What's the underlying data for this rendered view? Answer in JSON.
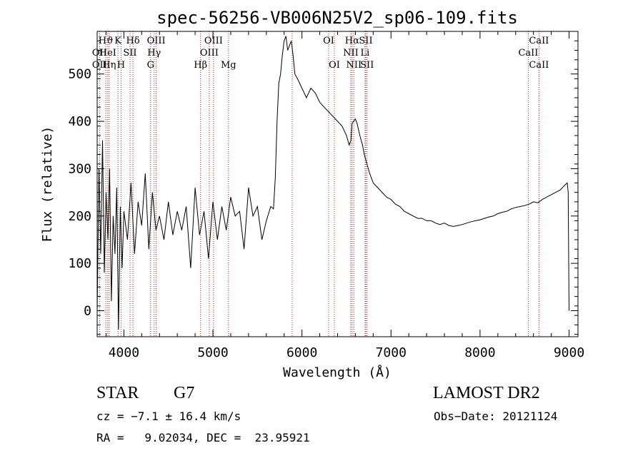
{
  "chart_data": {
    "type": "line",
    "title": "spec-56256-VB006N25V2_sp06-109.fits",
    "xlabel": "Wavelength (Å)",
    "ylabel": "Flux (relative)",
    "xlim": [
      3700,
      9100
    ],
    "ylim": [
      -55,
      590
    ],
    "xticks": [
      4000,
      5000,
      6000,
      7000,
      8000,
      9000
    ],
    "yticks": [
      0,
      100,
      200,
      300,
      400,
      500
    ],
    "grid": false,
    "series": [
      {
        "line_color": "#000000",
        "x": [
          3700,
          3720,
          3740,
          3760,
          3780,
          3800,
          3820,
          3840,
          3860,
          3880,
          3900,
          3920,
          3940,
          3960,
          3980,
          4000,
          4040,
          4080,
          4120,
          4160,
          4200,
          4240,
          4280,
          4320,
          4360,
          4400,
          4450,
          4500,
          4550,
          4600,
          4650,
          4700,
          4750,
          4800,
          4850,
          4900,
          4950,
          5000,
          5050,
          5100,
          5150,
          5200,
          5250,
          5300,
          5350,
          5400,
          5450,
          5500,
          5550,
          5600,
          5650,
          5680,
          5700,
          5720,
          5740,
          5760,
          5780,
          5800,
          5820,
          5840,
          5860,
          5880,
          5900,
          5920,
          5950,
          6000,
          6050,
          6100,
          6150,
          6200,
          6250,
          6300,
          6350,
          6400,
          6450,
          6500,
          6530,
          6550,
          6562,
          6580,
          6600,
          6620,
          6650,
          6680,
          6700,
          6730,
          6760,
          6800,
          6850,
          6900,
          6950,
          7000,
          7050,
          7100,
          7150,
          7200,
          7250,
          7300,
          7350,
          7400,
          7450,
          7500,
          7550,
          7600,
          7650,
          7700,
          7750,
          7800,
          7850,
          7900,
          7950,
          8000,
          8050,
          8100,
          8150,
          8200,
          8250,
          8300,
          8350,
          8400,
          8450,
          8500,
          8550,
          8600,
          8650,
          8700,
          8750,
          8800,
          8850,
          8900,
          8950,
          8980,
          8990,
          9000
        ],
        "y": [
          0,
          300,
          120,
          360,
          80,
          250,
          150,
          300,
          20,
          200,
          120,
          260,
          -40,
          220,
          90,
          210,
          150,
          270,
          120,
          230,
          180,
          290,
          130,
          250,
          170,
          200,
          150,
          230,
          160,
          210,
          170,
          220,
          90,
          260,
          160,
          210,
          110,
          230,
          150,
          220,
          170,
          240,
          200,
          210,
          130,
          260,
          200,
          220,
          150,
          190,
          220,
          215,
          280,
          400,
          480,
          500,
          540,
          570,
          580,
          550,
          560,
          570,
          540,
          500,
          490,
          470,
          450,
          470,
          460,
          440,
          430,
          420,
          410,
          400,
          390,
          370,
          350,
          360,
          395,
          400,
          405,
          395,
          370,
          350,
          330,
          310,
          290,
          270,
          260,
          250,
          240,
          235,
          225,
          220,
          210,
          205,
          200,
          195,
          195,
          190,
          190,
          185,
          182,
          185,
          180,
          178,
          180,
          182,
          185,
          188,
          190,
          192,
          195,
          198,
          200,
          205,
          208,
          210,
          215,
          218,
          220,
          222,
          225,
          230,
          228,
          235,
          240,
          245,
          250,
          255,
          265,
          270,
          250,
          0
        ]
      }
    ],
    "spectral_lines": [
      {
        "label": "Hϑ",
        "x": 3797,
        "row": 1
      },
      {
        "label": "OII",
        "x": 3727,
        "row": 2
      },
      {
        "label": "HeI",
        "x": 3819,
        "row": 2
      },
      {
        "label": "OII",
        "x": 3727,
        "row": 3
      },
      {
        "label": "Hη",
        "x": 3835,
        "row": 3
      },
      {
        "label": "K",
        "x": 3934,
        "row": 1
      },
      {
        "label": "H",
        "x": 3968,
        "row": 3
      },
      {
        "label": "SII",
        "x": 4069,
        "row": 2
      },
      {
        "label": "Hδ",
        "x": 4102,
        "row": 1
      },
      {
        "label": "OIII",
        "x": 4363,
        "row": 1
      },
      {
        "label": "Hγ",
        "x": 4340,
        "row": 2
      },
      {
        "label": "G",
        "x": 4300,
        "row": 3
      },
      {
        "label": "Hβ",
        "x": 4861,
        "row": 3
      },
      {
        "label": "OIII",
        "x": 5007,
        "row": 1
      },
      {
        "label": "OIII",
        "x": 4959,
        "row": 2
      },
      {
        "label": "Mg",
        "x": 5175,
        "row": 3
      },
      {
        "label": "OI",
        "x": 6300,
        "row": 1
      },
      {
        "label": "OI",
        "x": 6364,
        "row": 3
      },
      {
        "label": "Hα",
        "x": 6563,
        "row": 1
      },
      {
        "label": "NII",
        "x": 6548,
        "row": 2
      },
      {
        "label": "NII",
        "x": 6583,
        "row": 3
      },
      {
        "label": "SII",
        "x": 6717,
        "row": 1
      },
      {
        "label": "Li",
        "x": 6708,
        "row": 2
      },
      {
        "label": "SII",
        "x": 6731,
        "row": 3
      },
      {
        "label": "CaII",
        "x": 8662,
        "row": 1
      },
      {
        "label": "CaII",
        "x": 8542,
        "row": 2
      },
      {
        "label": "CaII",
        "x": 8662,
        "row": 3
      }
    ],
    "line_marker_color": "#b22222",
    "extra_line_markers": [
      5890
    ]
  },
  "info": {
    "object_class": "STAR",
    "subclass": "G7",
    "survey": "LAMOST DR2",
    "cz": "cz = −7.1 ± 16.4 km/s",
    "obs_date": "Obs−Date: 20121124",
    "coords": "RA =   9.02034, DEC =  23.95921"
  }
}
